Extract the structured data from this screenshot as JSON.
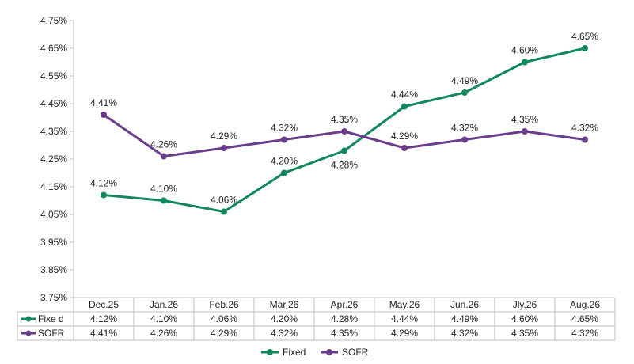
{
  "chart_data": {
    "type": "line",
    "title": "",
    "xlabel": "",
    "ylabel": "",
    "categories": [
      "Dec.25",
      "Jan.26",
      "Feb.26",
      "Mar.26",
      "Apr.26",
      "May.26",
      "Jun.26",
      "Jly.26",
      "Aug.26"
    ],
    "ylim": [
      3.75,
      4.75
    ],
    "yticks": [
      "3.75%",
      "3.85%",
      "3.95%",
      "4.05%",
      "4.15%",
      "4.25%",
      "4.35%",
      "4.45%",
      "4.55%",
      "4.65%",
      "4.75%"
    ],
    "grid": false,
    "legend_position": "bottom",
    "series": [
      {
        "name": "Fixe d",
        "color": "#12875a",
        "values": [
          4.12,
          4.1,
          4.06,
          4.2,
          4.28,
          4.44,
          4.49,
          4.6,
          4.65
        ],
        "labels": [
          "4.12%",
          "4.10%",
          "4.06%",
          "4.20%",
          "4.28%",
          "4.44%",
          "4.49%",
          "4.60%",
          "4.65%"
        ]
      },
      {
        "name": "SOFR",
        "color": "#6a3d8a",
        "values": [
          4.41,
          4.26,
          4.29,
          4.32,
          4.35,
          4.29,
          4.32,
          4.35,
          4.32
        ],
        "labels": [
          "4.41%",
          "4.26%",
          "4.29%",
          "4.32%",
          "4.35%",
          "4.29%",
          "4.32%",
          "4.35%",
          "4.32%"
        ]
      }
    ],
    "legend": [
      "Fixed",
      "SOFR"
    ]
  }
}
